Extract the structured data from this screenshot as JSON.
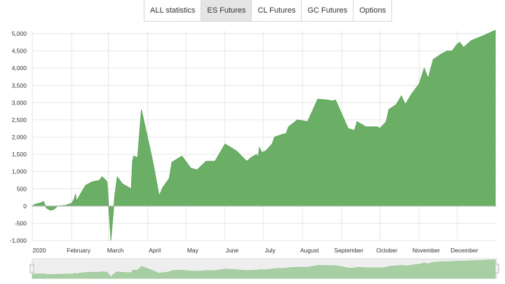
{
  "tabs": [
    {
      "label": "ALL statistics",
      "active": false
    },
    {
      "label": "ES Futures",
      "active": true
    },
    {
      "label": "CL Futures",
      "active": false
    },
    {
      "label": "GC Futures",
      "active": false
    },
    {
      "label": "Options",
      "active": false
    }
  ],
  "colors": {
    "area_fill": "#6aaf65",
    "area_stroke": "#5a9f55",
    "navigator_fill": "#a8cfa3",
    "navigator_bg": "#eeeeee",
    "grid": "#e6e6e6"
  },
  "chart_data": {
    "type": "area",
    "title": "",
    "xlabel": "",
    "ylabel": "",
    "ylim": [
      -1000,
      5000
    ],
    "yticks": [
      "5,000",
      "4,500",
      "4,000",
      "3,500",
      "3,000",
      "2,500",
      "2,000",
      "1,500",
      "1,000",
      "500",
      "0",
      "-500",
      "-1,000"
    ],
    "ytick_values": [
      5000,
      4500,
      4000,
      3500,
      3000,
      2500,
      2000,
      1500,
      1000,
      500,
      0,
      -500,
      -1000
    ],
    "xlim": [
      "2020-01-01",
      "2021-01-01"
    ],
    "xticks": [
      {
        "label": "2020",
        "date": "2020-01-01"
      },
      {
        "label": "February",
        "date": "2020-02-01"
      },
      {
        "label": "March",
        "date": "2020-03-01"
      },
      {
        "label": "April",
        "date": "2020-04-01"
      },
      {
        "label": "May",
        "date": "2020-05-01"
      },
      {
        "label": "June",
        "date": "2020-06-01"
      },
      {
        "label": "July",
        "date": "2020-07-01"
      },
      {
        "label": "August",
        "date": "2020-08-01"
      },
      {
        "label": "September",
        "date": "2020-09-01"
      },
      {
        "label": "October",
        "date": "2020-10-01"
      },
      {
        "label": "November",
        "date": "2020-11-01"
      },
      {
        "label": "December",
        "date": "2020-12-01"
      }
    ],
    "grid": true,
    "navigator": true,
    "series": [
      {
        "values": [
          [
            "2020-01-01",
            0
          ],
          [
            "2020-01-03",
            50
          ],
          [
            "2020-01-08",
            100
          ],
          [
            "2020-01-10",
            130
          ],
          [
            "2020-01-12",
            -50
          ],
          [
            "2020-01-15",
            -120
          ],
          [
            "2020-01-18",
            -100
          ],
          [
            "2020-01-21",
            0
          ],
          [
            "2020-01-27",
            20
          ],
          [
            "2020-02-01",
            80
          ],
          [
            "2020-02-03",
            200
          ],
          [
            "2020-02-04",
            350
          ],
          [
            "2020-02-05",
            150
          ],
          [
            "2020-02-08",
            350
          ],
          [
            "2020-02-12",
            600
          ],
          [
            "2020-02-17",
            700
          ],
          [
            "2020-02-23",
            750
          ],
          [
            "2020-02-25",
            850
          ],
          [
            "2020-02-28",
            750
          ],
          [
            "2020-02-29",
            700
          ],
          [
            "2020-03-03",
            -1000
          ],
          [
            "2020-03-06",
            300
          ],
          [
            "2020-03-08",
            850
          ],
          [
            "2020-03-12",
            650
          ],
          [
            "2020-03-19",
            500
          ],
          [
            "2020-03-20",
            1300
          ],
          [
            "2020-03-21",
            1450
          ],
          [
            "2020-03-24",
            1400
          ],
          [
            "2020-03-27",
            2800
          ],
          [
            "2020-04-05",
            1300
          ],
          [
            "2020-04-10",
            300
          ],
          [
            "2020-04-13",
            550
          ],
          [
            "2020-04-18",
            800
          ],
          [
            "2020-04-20",
            1270
          ],
          [
            "2020-04-28",
            1450
          ],
          [
            "2020-05-05",
            1100
          ],
          [
            "2020-05-10",
            1050
          ],
          [
            "2020-05-17",
            1300
          ],
          [
            "2020-05-24",
            1300
          ],
          [
            "2020-06-01",
            1800
          ],
          [
            "2020-06-10",
            1600
          ],
          [
            "2020-06-18",
            1300
          ],
          [
            "2020-06-22",
            1420
          ],
          [
            "2020-06-26",
            1500
          ],
          [
            "2020-06-27",
            1400
          ],
          [
            "2020-06-28",
            1700
          ],
          [
            "2020-06-30",
            1550
          ],
          [
            "2020-07-03",
            1600
          ],
          [
            "2020-07-08",
            1800
          ],
          [
            "2020-07-10",
            2000
          ],
          [
            "2020-07-16",
            2080
          ],
          [
            "2020-07-19",
            2100
          ],
          [
            "2020-07-21",
            2300
          ],
          [
            "2020-07-28",
            2500
          ],
          [
            "2020-08-05",
            2450
          ],
          [
            "2020-08-13",
            3100
          ],
          [
            "2020-08-20",
            3080
          ],
          [
            "2020-08-25",
            3050
          ],
          [
            "2020-08-27",
            3080
          ],
          [
            "2020-09-06",
            2250
          ],
          [
            "2020-09-11",
            2200
          ],
          [
            "2020-09-13",
            2450
          ],
          [
            "2020-09-20",
            2300
          ],
          [
            "2020-09-29",
            2300
          ],
          [
            "2020-10-01",
            2250
          ],
          [
            "2020-10-06",
            2450
          ],
          [
            "2020-10-08",
            2800
          ],
          [
            "2020-10-14",
            2950
          ],
          [
            "2020-10-18",
            3200
          ],
          [
            "2020-10-21",
            2950
          ],
          [
            "2020-10-26",
            3250
          ],
          [
            "2020-11-01",
            3550
          ],
          [
            "2020-11-05",
            4000
          ],
          [
            "2020-11-08",
            3700
          ],
          [
            "2020-11-12",
            4250
          ],
          [
            "2020-11-18",
            4400
          ],
          [
            "2020-11-23",
            4500
          ],
          [
            "2020-11-27",
            4500
          ],
          [
            "2020-12-01",
            4700
          ],
          [
            "2020-12-03",
            4750
          ],
          [
            "2020-12-06",
            4600
          ],
          [
            "2020-12-12",
            4800
          ],
          [
            "2020-12-22",
            4950
          ],
          [
            "2020-12-31",
            5100
          ]
        ]
      }
    ]
  }
}
